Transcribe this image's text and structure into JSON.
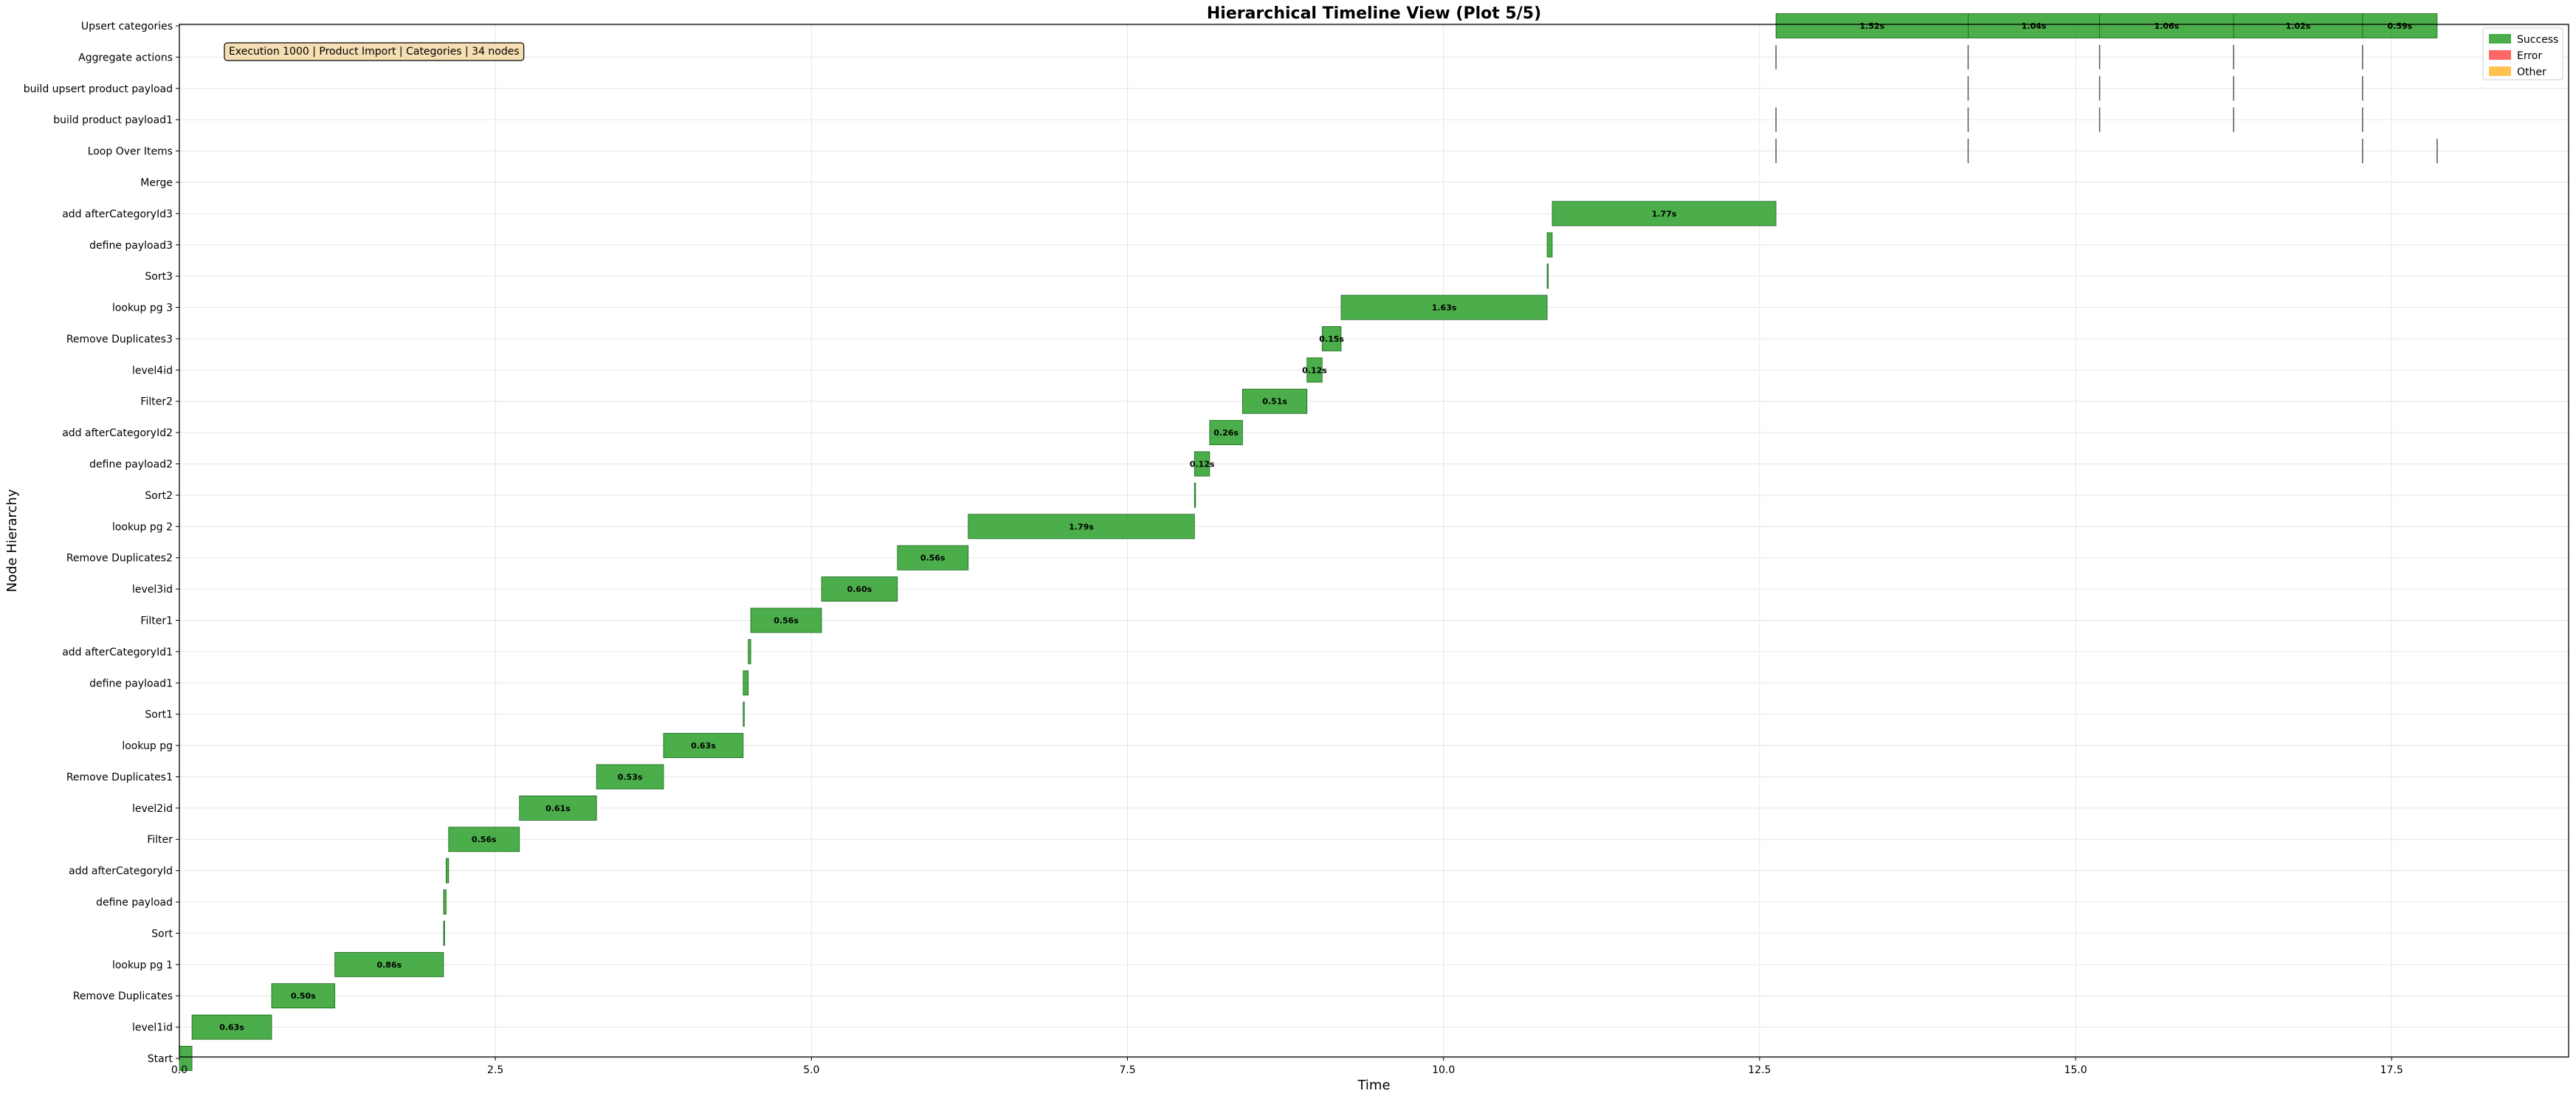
{
  "chart_data": {
    "type": "timeline",
    "title": "Hierarchical Timeline View (Plot 5/5)",
    "xlabel": "Time",
    "ylabel": "Node Hierarchy",
    "xlim": [
      0,
      18.9
    ],
    "xticks": [
      0.0,
      2.5,
      5.0,
      7.5,
      10.0,
      12.5,
      15.0,
      17.5
    ],
    "xtick_labels": [
      "0.0",
      "2.5",
      "5.0",
      "7.5",
      "10.0",
      "12.5",
      "15.0",
      "17.5"
    ],
    "grid": true,
    "legend_position": "top-right",
    "legend": [
      {
        "label": "Success",
        "color": "#2ca02c"
      },
      {
        "label": "Error",
        "color": "#ff4c4c"
      },
      {
        "label": "Other",
        "color": "#ffb733"
      }
    ],
    "annotation": "Execution 1000 | Product Import | Categories | 34 nodes",
    "nodes": [
      "Upsert categories",
      "Aggregate actions",
      "build upsert product payload",
      "build product payload1",
      "Loop Over Items",
      "Merge",
      "add afterCategoryId3",
      "define payload3",
      "Sort3",
      "lookup pg 3",
      "Remove Duplicates3",
      "level4id",
      "Filter2",
      "add afterCategoryId2",
      "define payload2",
      "Sort2",
      "lookup pg 2",
      "Remove Duplicates2",
      "level3id",
      "Filter1",
      "add afterCategoryId1",
      "define payload1",
      "Sort1",
      "lookup pg",
      "Remove Duplicates1",
      "level2id",
      "Filter",
      "add afterCategoryId",
      "define payload",
      "Sort",
      "lookup pg 1",
      "Remove Duplicates",
      "level1id",
      "Start"
    ],
    "bars": [
      {
        "node": "Start",
        "start": 0.0,
        "duration": 0.1,
        "status": "Success",
        "label": ""
      },
      {
        "node": "level1id",
        "start": 0.1,
        "duration": 0.63,
        "status": "Success",
        "label": "0.63s"
      },
      {
        "node": "Remove Duplicates",
        "start": 0.73,
        "duration": 0.5,
        "status": "Success",
        "label": "0.50s"
      },
      {
        "node": "lookup pg 1",
        "start": 1.23,
        "duration": 0.86,
        "status": "Success",
        "label": "0.86s"
      },
      {
        "node": "Sort",
        "start": 2.09,
        "duration": 0.0,
        "status": "Success",
        "label": ""
      },
      {
        "node": "define payload",
        "start": 2.09,
        "duration": 0.02,
        "status": "Success",
        "label": ""
      },
      {
        "node": "add afterCategoryId",
        "start": 2.11,
        "duration": 0.02,
        "status": "Success",
        "label": ""
      },
      {
        "node": "Filter",
        "start": 2.13,
        "duration": 0.56,
        "status": "Success",
        "label": "0.56s"
      },
      {
        "node": "level2id",
        "start": 2.69,
        "duration": 0.61,
        "status": "Success",
        "label": "0.61s"
      },
      {
        "node": "Remove Duplicates1",
        "start": 3.3,
        "duration": 0.53,
        "status": "Success",
        "label": "0.53s"
      },
      {
        "node": "lookup pg",
        "start": 3.83,
        "duration": 0.63,
        "status": "Success",
        "label": "0.63s"
      },
      {
        "node": "Sort1",
        "start": 4.46,
        "duration": 0.0,
        "status": "Success",
        "label": ""
      },
      {
        "node": "define payload1",
        "start": 4.46,
        "duration": 0.04,
        "status": "Success",
        "label": ""
      },
      {
        "node": "add afterCategoryId1",
        "start": 4.5,
        "duration": 0.02,
        "status": "Success",
        "label": ""
      },
      {
        "node": "Filter1",
        "start": 4.52,
        "duration": 0.56,
        "status": "Success",
        "label": "0.56s"
      },
      {
        "node": "level3id",
        "start": 5.08,
        "duration": 0.6,
        "status": "Success",
        "label": "0.60s"
      },
      {
        "node": "Remove Duplicates2",
        "start": 5.68,
        "duration": 0.56,
        "status": "Success",
        "label": "0.56s"
      },
      {
        "node": "lookup pg 2",
        "start": 6.24,
        "duration": 1.79,
        "status": "Success",
        "label": "1.79s"
      },
      {
        "node": "Sort2",
        "start": 8.03,
        "duration": 0.0,
        "status": "Success",
        "label": ""
      },
      {
        "node": "define payload2",
        "start": 8.03,
        "duration": 0.12,
        "status": "Success",
        "label": "0.12s"
      },
      {
        "node": "add afterCategoryId2",
        "start": 8.15,
        "duration": 0.26,
        "status": "Success",
        "label": "0.26s"
      },
      {
        "node": "Filter2",
        "start": 8.41,
        "duration": 0.51,
        "status": "Success",
        "label": "0.51s"
      },
      {
        "node": "level4id",
        "start": 8.92,
        "duration": 0.12,
        "status": "Success",
        "label": "0.12s"
      },
      {
        "node": "Remove Duplicates3",
        "start": 9.04,
        "duration": 0.15,
        "status": "Success",
        "label": "0.15s"
      },
      {
        "node": "lookup pg 3",
        "start": 9.19,
        "duration": 1.63,
        "status": "Success",
        "label": "1.63s"
      },
      {
        "node": "Sort3",
        "start": 10.82,
        "duration": 0.0,
        "status": "Success",
        "label": ""
      },
      {
        "node": "define payload3",
        "start": 10.82,
        "duration": 0.04,
        "status": "Success",
        "label": ""
      },
      {
        "node": "add afterCategoryId3",
        "start": 10.86,
        "duration": 1.77,
        "status": "Success",
        "label": "1.77s"
      },
      {
        "node": "Upsert categories",
        "start": 12.63,
        "duration": 1.52,
        "status": "Success",
        "label": "1.52s"
      },
      {
        "node": "Upsert categories",
        "start": 14.15,
        "duration": 1.04,
        "status": "Success",
        "label": "1.04s"
      },
      {
        "node": "Upsert categories",
        "start": 15.19,
        "duration": 1.06,
        "status": "Success",
        "label": "1.06s"
      },
      {
        "node": "Upsert categories",
        "start": 16.25,
        "duration": 1.02,
        "status": "Success",
        "label": "1.02s"
      },
      {
        "node": "Upsert categories",
        "start": 17.27,
        "duration": 0.59,
        "status": "Success",
        "label": "0.59s"
      }
    ],
    "ticks_marks": [
      {
        "node": "Aggregate actions",
        "times": [
          12.63,
          14.15,
          15.19,
          16.25,
          17.27
        ]
      },
      {
        "node": "build upsert product payload",
        "times": [
          14.15,
          15.19,
          16.25,
          17.27
        ]
      },
      {
        "node": "build product payload1",
        "times": [
          12.63,
          14.15,
          15.19,
          16.25,
          17.27
        ]
      },
      {
        "node": "Loop Over Items",
        "times": [
          12.63,
          14.15,
          17.27,
          17.86
        ]
      }
    ]
  }
}
